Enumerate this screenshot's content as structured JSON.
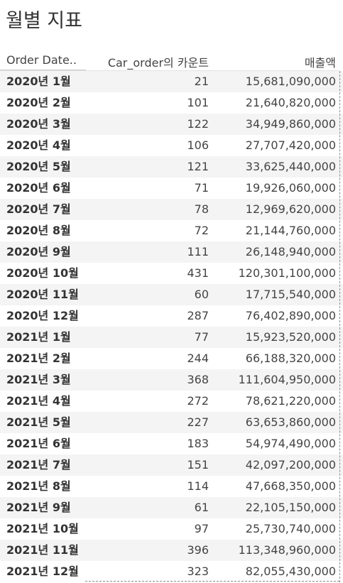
{
  "title": "월별 지표",
  "chart_data": {
    "type": "table",
    "columns": [
      "Order Date..",
      "Car_order의 카운트",
      "매출액"
    ],
    "rows": [
      {
        "date": "2020년 1월",
        "count": "21",
        "sales": "15,681,090,000"
      },
      {
        "date": "2020년 2월",
        "count": "101",
        "sales": "21,640,820,000"
      },
      {
        "date": "2020년 3월",
        "count": "122",
        "sales": "34,949,860,000"
      },
      {
        "date": "2020년 4월",
        "count": "106",
        "sales": "27,707,420,000"
      },
      {
        "date": "2020년 5월",
        "count": "121",
        "sales": "33,625,440,000"
      },
      {
        "date": "2020년 6월",
        "count": "71",
        "sales": "19,926,060,000"
      },
      {
        "date": "2020년 7월",
        "count": "78",
        "sales": "12,969,620,000"
      },
      {
        "date": "2020년 8월",
        "count": "72",
        "sales": "21,144,760,000"
      },
      {
        "date": "2020년 9월",
        "count": "111",
        "sales": "26,148,940,000"
      },
      {
        "date": "2020년 10월",
        "count": "431",
        "sales": "120,301,100,000"
      },
      {
        "date": "2020년 11월",
        "count": "60",
        "sales": "17,715,540,000"
      },
      {
        "date": "2020년 12월",
        "count": "287",
        "sales": "76,402,890,000"
      },
      {
        "date": "2021년 1월",
        "count": "77",
        "sales": "15,923,520,000"
      },
      {
        "date": "2021년 2월",
        "count": "244",
        "sales": "66,188,320,000"
      },
      {
        "date": "2021년 3월",
        "count": "368",
        "sales": "111,604,950,000"
      },
      {
        "date": "2021년 4월",
        "count": "272",
        "sales": "78,621,220,000"
      },
      {
        "date": "2021년 5월",
        "count": "227",
        "sales": "63,653,860,000"
      },
      {
        "date": "2021년 6월",
        "count": "183",
        "sales": "54,974,490,000"
      },
      {
        "date": "2021년 7월",
        "count": "151",
        "sales": "42,097,200,000"
      },
      {
        "date": "2021년 8월",
        "count": "114",
        "sales": "47,668,350,000"
      },
      {
        "date": "2021년 9월",
        "count": "61",
        "sales": "22,105,150,000"
      },
      {
        "date": "2021년 10월",
        "count": "97",
        "sales": "25,730,740,000"
      },
      {
        "date": "2021년 11월",
        "count": "396",
        "sales": "113,348,960,000"
      },
      {
        "date": "2021년 12월",
        "count": "323",
        "sales": "82,055,430,000"
      }
    ]
  }
}
